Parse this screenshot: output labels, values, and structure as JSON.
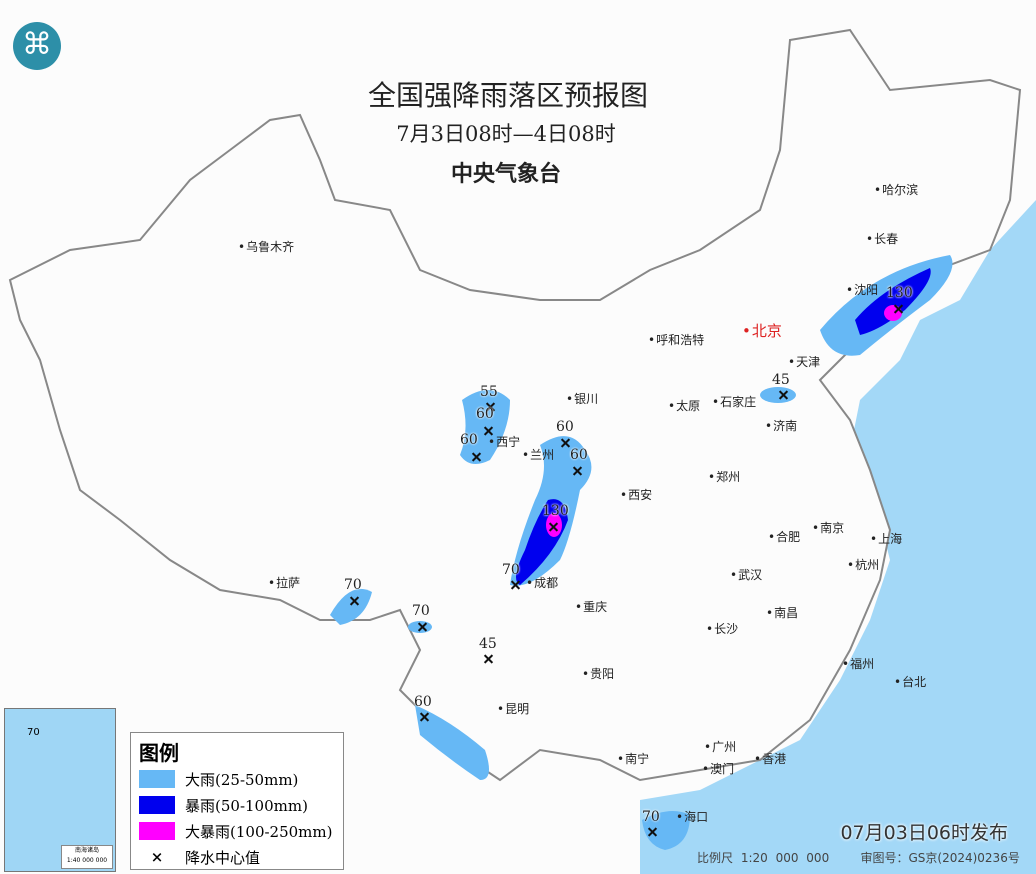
{
  "title": "全国强降雨落区预报图",
  "period": "7月3日08时—4日08时",
  "issuer": "中央气象台",
  "legend": {
    "title": "图例",
    "items": [
      {
        "label": "大雨(25-50mm)",
        "color": "#66b8f5"
      },
      {
        "label": "暴雨(50-100mm)",
        "color": "#0000ee"
      },
      {
        "label": "大暴雨(100-250mm)",
        "color": "#ff00ff"
      },
      {
        "label": "降水中心值",
        "symbol": "×"
      }
    ]
  },
  "inset": {
    "title": "南海诸岛",
    "scale": "1:40 000 000",
    "value": "70"
  },
  "published": "07月03日06时发布",
  "scale": "比例尺 1:20 000 000",
  "map_approval": "审图号：GS京(2024)0236号",
  "capital": "北京",
  "cities": [
    "乌鲁木齐",
    "哈尔滨",
    "长春",
    "沈阳",
    "天津",
    "呼和浩特",
    "银川",
    "太原",
    "石家庄",
    "济南",
    "西宁",
    "兰州",
    "郑州",
    "西安",
    "合肥",
    "南京",
    "上海",
    "拉萨",
    "成都",
    "武汉",
    "杭州",
    "重庆",
    "长沙",
    "南昌",
    "福州",
    "台北",
    "贵阳",
    "昆明",
    "南宁",
    "广州",
    "澳门",
    "香港",
    "海口"
  ],
  "rain_centers": [
    "55",
    "60",
    "60",
    "60",
    "60",
    "130",
    "70",
    "70",
    "70",
    "45",
    "60",
    "45",
    "130",
    "70"
  ],
  "colors": {
    "sea": "#a3d8f7",
    "land": "#fcfcfc",
    "border": "#888888"
  }
}
